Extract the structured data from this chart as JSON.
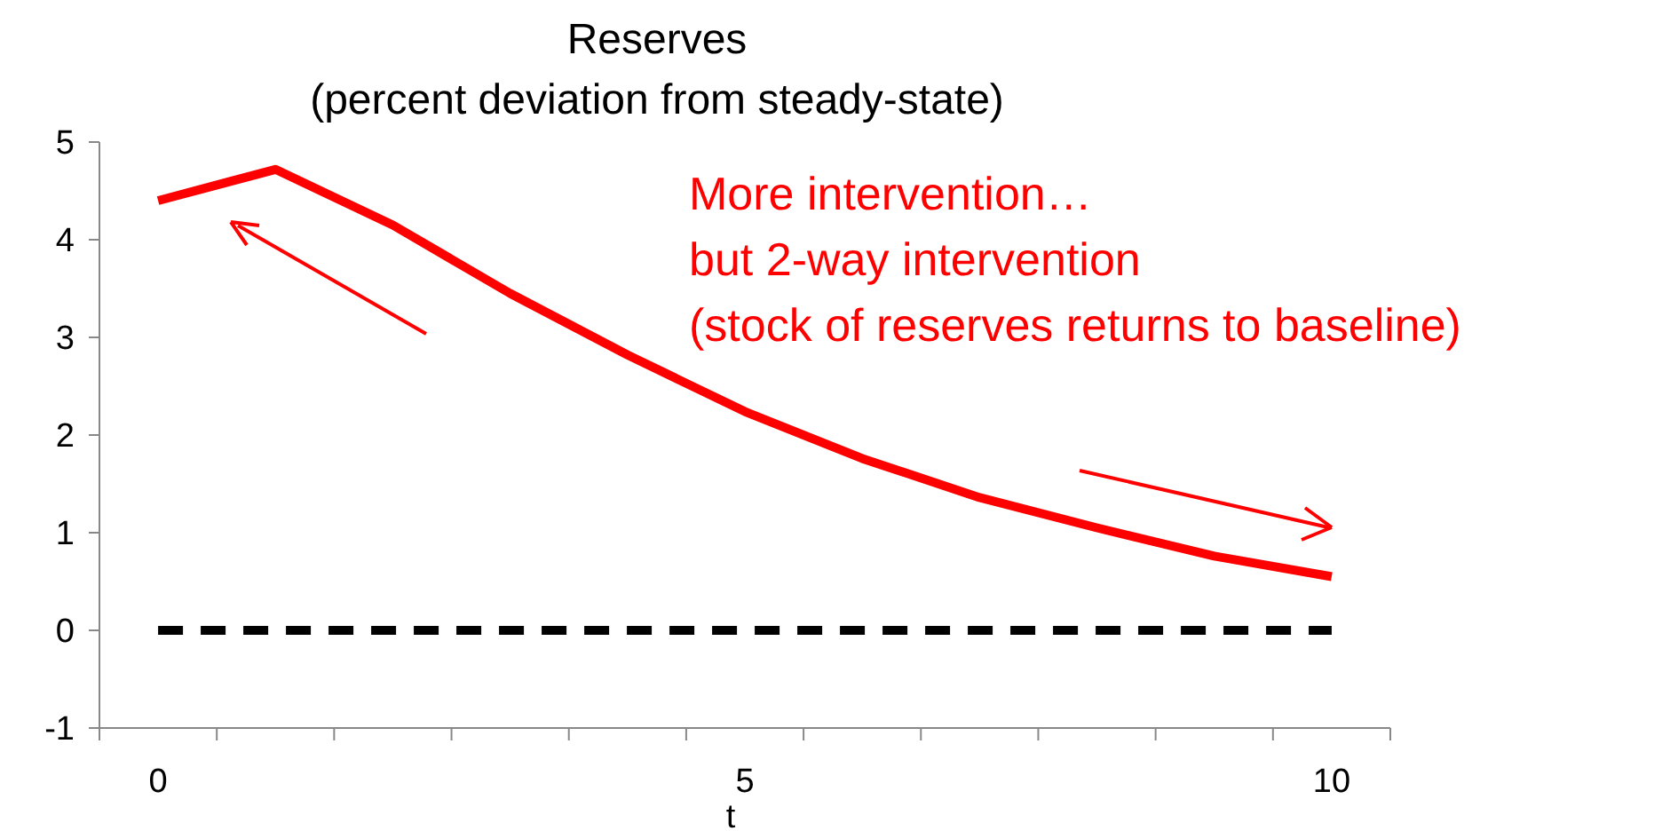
{
  "chart_data": {
    "type": "line",
    "title": "Reserves",
    "subtitle": "(percent deviation from steady-state)",
    "xlabel": "t",
    "categories": [
      "0",
      null,
      null,
      null,
      null,
      "5",
      null,
      null,
      null,
      null,
      "10"
    ],
    "series": [
      {
        "color": "#ff0000",
        "values": [
          4.4,
          4.72,
          4.15,
          3.45,
          2.82,
          2.24,
          1.76,
          1.36,
          1.05,
          0.76,
          0.55
        ],
        "line_style": "solid"
      },
      {
        "color": "#000000",
        "values": [
          0,
          0,
          0,
          0,
          0,
          0,
          0,
          0,
          0,
          0,
          0
        ],
        "line_style": "dashed"
      }
    ],
    "ylim": [
      -1,
      5
    ],
    "yticks": [
      -1,
      0,
      1,
      2,
      3,
      4,
      5
    ],
    "grid": false,
    "marker": "none",
    "annotations": [
      "More intervention…",
      "but 2-way intervention",
      "(stock of reserves returns to baseline)"
    ]
  }
}
